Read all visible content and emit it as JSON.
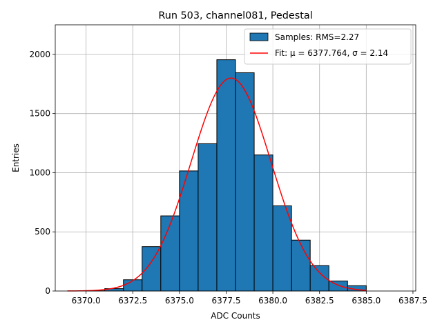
{
  "chart_data": {
    "type": "bar",
    "title": "Run 503, channel081, Pedestal",
    "xlabel": "ADC Counts",
    "ylabel": "Entries",
    "xlim": [
      6368.35,
      6387.65
    ],
    "ylim": [
      0,
      2250
    ],
    "grid": true,
    "x_ticks": [
      6370.0,
      6372.5,
      6375.0,
      6377.5,
      6380.0,
      6382.5,
      6385.0,
      6387.5
    ],
    "x_tick_labels": [
      "6370.0",
      "6372.5",
      "6375.0",
      "6377.5",
      "6380.0",
      "6382.5",
      "6385.0",
      "6387.5"
    ],
    "y_ticks": [
      0,
      500,
      1000,
      1500,
      2000
    ],
    "y_tick_labels": [
      "0",
      "500",
      "1000",
      "1500",
      "2000"
    ],
    "bins": [
      {
        "left": 6370,
        "right": 6371,
        "value": 2
      },
      {
        "left": 6371,
        "right": 6372,
        "value": 20
      },
      {
        "left": 6372,
        "right": 6373,
        "value": 95
      },
      {
        "left": 6373,
        "right": 6374,
        "value": 375
      },
      {
        "left": 6374,
        "right": 6375,
        "value": 635
      },
      {
        "left": 6375,
        "right": 6376,
        "value": 1015
      },
      {
        "left": 6376,
        "right": 6377,
        "value": 1245
      },
      {
        "left": 6377,
        "right": 6378,
        "value": 1955
      },
      {
        "left": 6378,
        "right": 6379,
        "value": 1845
      },
      {
        "left": 6379,
        "right": 6380,
        "value": 1150
      },
      {
        "left": 6380,
        "right": 6381,
        "value": 720
      },
      {
        "left": 6381,
        "right": 6382,
        "value": 430
      },
      {
        "left": 6382,
        "right": 6383,
        "value": 215
      },
      {
        "left": 6383,
        "right": 6384,
        "value": 85
      },
      {
        "left": 6384,
        "right": 6385,
        "value": 45
      }
    ],
    "fit": {
      "mu": 6377.764,
      "sigma": 2.14,
      "amplitude": 1800,
      "x_range": [
        6369.0,
        6385.0
      ]
    },
    "legend": {
      "position": "top-right",
      "entries": [
        {
          "label": "Samples: RMS=2.27",
          "kind": "patch"
        },
        {
          "label": "Fit: μ = 6377.764, σ = 2.14",
          "kind": "line"
        }
      ]
    },
    "colors": {
      "bar_fill": "#1f77b4",
      "bar_edge": "#000000",
      "fit_line": "#ff0000",
      "grid": "#b0b0b0"
    }
  }
}
